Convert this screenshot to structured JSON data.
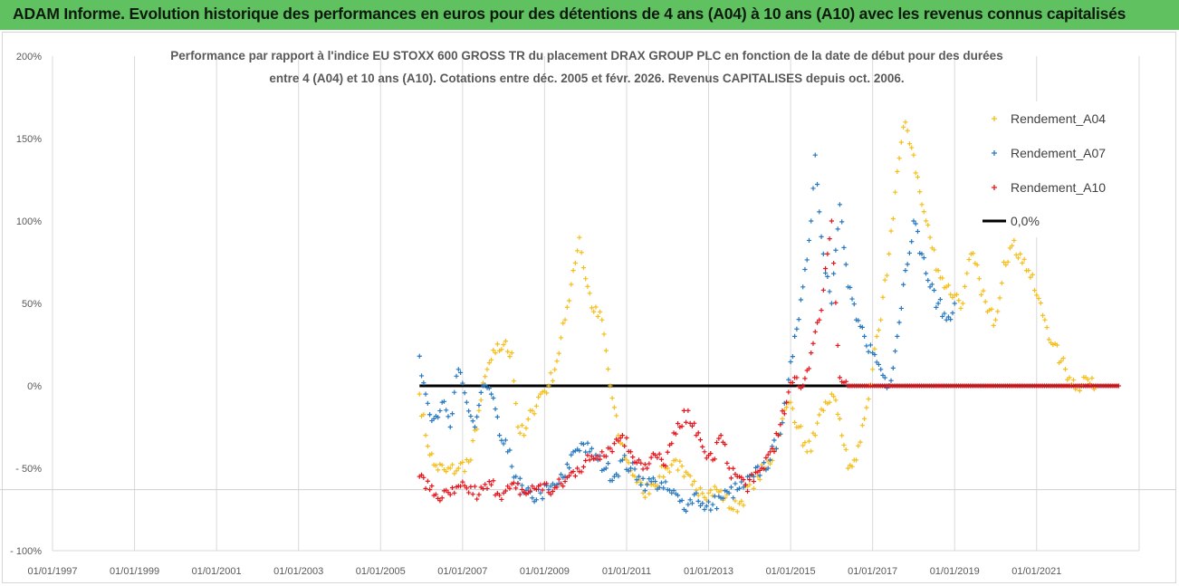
{
  "header": {
    "title": "ADAM Informe. Evolution historique des performances en euros pour des détentions de 4 ans (A04) à 10 ans (A10) avec les revenus connus capitalisés"
  },
  "colors": {
    "banner": "#5fc160",
    "a04": "#f5be1a",
    "a07": "#2878c0",
    "a10": "#e8141c",
    "zero": "#000000",
    "grid": "#d9d9d9"
  },
  "chart_data": {
    "type": "scatter",
    "title_line1": "Performance par rapport à l'indice EU STOXX 600 GROSS TR  du placement DRAX GROUP PLC en fonction de la date de début pour des durées",
    "title_line2": "entre 4 (A04) et 10 ans (A10). Cotations entre déc. 2005 et févr. 2026. Revenus CAPITALISES depuis oct. 2006.",
    "xlabel": "",
    "ylabel": "",
    "xlim": [
      1997.0,
      2023.5
    ],
    "ylim": [
      -100,
      200
    ],
    "x_ticks": [
      1997,
      1999,
      2001,
      2003,
      2005,
      2007,
      2009,
      2011,
      2013,
      2015,
      2017,
      2019,
      2021
    ],
    "x_tick_labels": [
      "01/01/1997",
      "01/01/1999",
      "01/01/2001",
      "01/01/2003",
      "01/01/2005",
      "01/01/2007",
      "01/01/2009",
      "01/01/2011",
      "01/01/2013",
      "01/01/2015",
      "01/01/2017",
      "01/01/2019",
      "01/01/2021"
    ],
    "y_ticks": [
      -100,
      -50,
      0,
      50,
      100,
      150,
      200
    ],
    "y_tick_labels": [
      "- 100%",
      "- 50%",
      "0%",
      "50%",
      "100%",
      "150%",
      "200%"
    ],
    "reference_line_value": -63,
    "legend_position": "top-right",
    "series": [
      {
        "name": "Rendement_A04",
        "color": "#f5be1a",
        "points": [
          [
            2005.95,
            -5
          ],
          [
            2006.1,
            -30
          ],
          [
            2006.3,
            -48
          ],
          [
            2006.6,
            -52
          ],
          [
            2006.9,
            -50
          ],
          [
            2007.2,
            -45
          ],
          [
            2007.4,
            -15
          ],
          [
            2007.6,
            10
          ],
          [
            2007.8,
            20
          ],
          [
            2008.0,
            25
          ],
          [
            2008.2,
            20
          ],
          [
            2008.35,
            -25
          ],
          [
            2008.5,
            -30
          ],
          [
            2008.7,
            -15
          ],
          [
            2008.9,
            -5
          ],
          [
            2009.1,
            0
          ],
          [
            2009.3,
            15
          ],
          [
            2009.5,
            40
          ],
          [
            2009.7,
            70
          ],
          [
            2009.85,
            90
          ],
          [
            2010.0,
            65
          ],
          [
            2010.2,
            45
          ],
          [
            2010.4,
            40
          ],
          [
            2010.6,
            0
          ],
          [
            2010.8,
            -30
          ],
          [
            2011.0,
            -45
          ],
          [
            2011.2,
            -55
          ],
          [
            2011.4,
            -65
          ],
          [
            2011.6,
            -60
          ],
          [
            2011.8,
            -55
          ],
          [
            2012.0,
            -50
          ],
          [
            2012.2,
            -45
          ],
          [
            2012.4,
            -55
          ],
          [
            2012.6,
            -60
          ],
          [
            2012.8,
            -62
          ],
          [
            2013.0,
            -65
          ],
          [
            2013.2,
            -63
          ],
          [
            2013.4,
            -68
          ],
          [
            2013.6,
            -75
          ],
          [
            2013.8,
            -70
          ],
          [
            2014.0,
            -60
          ],
          [
            2014.2,
            -55
          ],
          [
            2014.4,
            -50
          ],
          [
            2014.6,
            -40
          ],
          [
            2014.8,
            -20
          ],
          [
            2015.0,
            -10
          ],
          [
            2015.2,
            -25
          ],
          [
            2015.4,
            -40
          ],
          [
            2015.6,
            -30
          ],
          [
            2015.8,
            -15
          ],
          [
            2016.0,
            -5
          ],
          [
            2016.2,
            -20
          ],
          [
            2016.4,
            -50
          ],
          [
            2016.6,
            -45
          ],
          [
            2016.8,
            -20
          ],
          [
            2017.0,
            10
          ],
          [
            2017.2,
            40
          ],
          [
            2017.4,
            80
          ],
          [
            2017.6,
            130
          ],
          [
            2017.8,
            160
          ],
          [
            2018.0,
            140
          ],
          [
            2018.2,
            110
          ],
          [
            2018.4,
            90
          ],
          [
            2018.6,
            70
          ],
          [
            2018.8,
            60
          ],
          [
            2019.0,
            55
          ],
          [
            2019.2,
            50
          ],
          [
            2019.4,
            80
          ],
          [
            2019.6,
            65
          ],
          [
            2019.8,
            45
          ],
          [
            2020.0,
            40
          ],
          [
            2020.2,
            75
          ],
          [
            2020.4,
            85
          ],
          [
            2020.6,
            80
          ],
          [
            2020.8,
            70
          ],
          [
            2021.0,
            55
          ],
          [
            2021.2,
            40
          ],
          [
            2021.4,
            25
          ],
          [
            2021.6,
            15
          ],
          [
            2021.8,
            5
          ],
          [
            2022.0,
            0
          ],
          [
            2022.2,
            5
          ],
          [
            2022.4,
            -2
          ]
        ]
      },
      {
        "name": "Rendement_A07",
        "color": "#2878c0",
        "points": [
          [
            2005.95,
            18
          ],
          [
            2006.1,
            -5
          ],
          [
            2006.3,
            -20
          ],
          [
            2006.5,
            -10
          ],
          [
            2006.7,
            -25
          ],
          [
            2006.9,
            10
          ],
          [
            2007.1,
            -10
          ],
          [
            2007.3,
            -25
          ],
          [
            2007.5,
            0
          ],
          [
            2007.7,
            -5
          ],
          [
            2007.9,
            -30
          ],
          [
            2008.1,
            -40
          ],
          [
            2008.3,
            -55
          ],
          [
            2008.5,
            -65
          ],
          [
            2008.7,
            -68
          ],
          [
            2008.9,
            -65
          ],
          [
            2009.1,
            -63
          ],
          [
            2009.3,
            -60
          ],
          [
            2009.5,
            -55
          ],
          [
            2009.7,
            -40
          ],
          [
            2009.9,
            -35
          ],
          [
            2010.1,
            -40
          ],
          [
            2010.3,
            -45
          ],
          [
            2010.5,
            -50
          ],
          [
            2010.7,
            -55
          ],
          [
            2010.9,
            -45
          ],
          [
            2011.1,
            -50
          ],
          [
            2011.3,
            -55
          ],
          [
            2011.5,
            -60
          ],
          [
            2011.7,
            -58
          ],
          [
            2011.9,
            -62
          ],
          [
            2012.1,
            -65
          ],
          [
            2012.3,
            -70
          ],
          [
            2012.5,
            -72
          ],
          [
            2012.7,
            -65
          ],
          [
            2012.9,
            -75
          ],
          [
            2013.1,
            -72
          ],
          [
            2013.3,
            -68
          ],
          [
            2013.5,
            -65
          ],
          [
            2013.7,
            -63
          ],
          [
            2013.9,
            -60
          ],
          [
            2014.1,
            -55
          ],
          [
            2014.3,
            -50
          ],
          [
            2014.5,
            -45
          ],
          [
            2014.7,
            -30
          ],
          [
            2014.9,
            -10
          ],
          [
            2015.1,
            30
          ],
          [
            2015.3,
            60
          ],
          [
            2015.5,
            100
          ],
          [
            2015.6,
            140
          ],
          [
            2015.8,
            80
          ],
          [
            2016.0,
            50
          ],
          [
            2016.2,
            110
          ],
          [
            2016.4,
            60
          ],
          [
            2016.6,
            40
          ],
          [
            2016.8,
            30
          ],
          [
            2017.0,
            20
          ],
          [
            2017.2,
            10
          ],
          [
            2017.4,
            0
          ],
          [
            2017.6,
            30
          ],
          [
            2017.8,
            70
          ],
          [
            2018.0,
            100
          ],
          [
            2018.2,
            80
          ],
          [
            2018.4,
            60
          ],
          [
            2018.6,
            50
          ],
          [
            2018.8,
            40
          ],
          [
            2019.0,
            50
          ]
        ]
      },
      {
        "name": "Rendement_A10",
        "color": "#e8141c",
        "points": [
          [
            2005.95,
            -55
          ],
          [
            2006.2,
            -63
          ],
          [
            2006.5,
            -68
          ],
          [
            2006.8,
            -65
          ],
          [
            2007.1,
            -62
          ],
          [
            2007.4,
            -66
          ],
          [
            2007.7,
            -60
          ],
          [
            2008.0,
            -65
          ],
          [
            2008.3,
            -62
          ],
          [
            2008.6,
            -65
          ],
          [
            2008.9,
            -60
          ],
          [
            2009.2,
            -64
          ],
          [
            2009.5,
            -58
          ],
          [
            2009.8,
            -50
          ],
          [
            2010.1,
            -45
          ],
          [
            2010.4,
            -40
          ],
          [
            2010.7,
            -35
          ],
          [
            2010.9,
            -30
          ],
          [
            2011.1,
            -40
          ],
          [
            2011.3,
            -45
          ],
          [
            2011.5,
            -50
          ],
          [
            2011.7,
            -42
          ],
          [
            2011.9,
            -48
          ],
          [
            2012.1,
            -35
          ],
          [
            2012.3,
            -25
          ],
          [
            2012.5,
            -15
          ],
          [
            2012.7,
            -30
          ],
          [
            2012.9,
            -40
          ],
          [
            2013.1,
            -45
          ],
          [
            2013.3,
            -30
          ],
          [
            2013.5,
            -50
          ],
          [
            2013.7,
            -55
          ],
          [
            2013.9,
            -60
          ],
          [
            2014.1,
            -58
          ],
          [
            2014.3,
            -50
          ],
          [
            2014.5,
            -40
          ],
          [
            2014.7,
            -30
          ],
          [
            2014.9,
            -10
          ],
          [
            2015.1,
            5
          ],
          [
            2015.3,
            0
          ],
          [
            2015.5,
            20
          ],
          [
            2015.7,
            40
          ],
          [
            2015.9,
            80
          ],
          [
            2016.0,
            100
          ],
          [
            2016.2,
            5
          ],
          [
            2016.4,
            0
          ],
          [
            2017.0,
            0
          ],
          [
            2018.0,
            0
          ],
          [
            2019.0,
            0
          ],
          [
            2020.0,
            0
          ],
          [
            2021.0,
            0
          ],
          [
            2022.0,
            0
          ],
          [
            2023.0,
            0
          ]
        ]
      },
      {
        "name": "0,0%",
        "color": "#000000",
        "points": [
          [
            2005.95,
            0
          ],
          [
            2023.0,
            0
          ]
        ]
      }
    ]
  }
}
